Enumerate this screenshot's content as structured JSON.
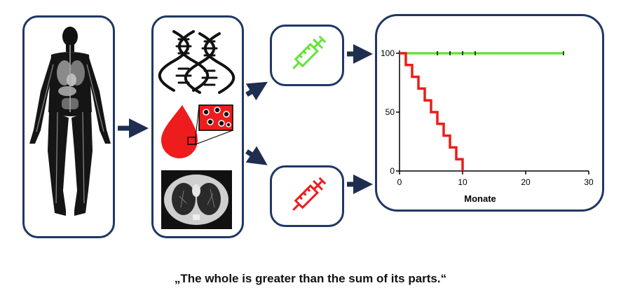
{
  "quote": "„The whole is greater than the sum of its parts.“",
  "icons": {
    "body": "human-body-anatomy-icon",
    "dna": "dna-double-helix-icon",
    "blood": "blood-drop-cells-icon",
    "ct": "lung-ct-scan-icon",
    "syringe_green": "green-syringe-icon",
    "syringe_red": "red-syringe-icon"
  },
  "colors": {
    "frame": "#1f3864",
    "arrow": "#1f2d4f",
    "green": "#66e23a",
    "red": "#ee1c1c"
  },
  "chart_data": {
    "type": "line",
    "xlabel": "Monate",
    "ylabel": "",
    "xlim": [
      0,
      30
    ],
    "ylim": [
      0,
      100
    ],
    "x_ticks": [
      0,
      10,
      20,
      30
    ],
    "y_ticks": [
      0,
      50,
      100
    ],
    "series": [
      {
        "color": "#66e23a",
        "step": true,
        "x": [
          0,
          26
        ],
        "y": [
          100,
          100
        ],
        "censored_x": [
          6,
          8,
          10,
          12,
          26
        ]
      },
      {
        "color": "#ee1c1c",
        "step": true,
        "x": [
          0,
          1,
          2,
          3,
          4,
          5,
          6,
          7,
          8,
          9,
          10
        ],
        "y": [
          100,
          90,
          80,
          70,
          60,
          50,
          40,
          30,
          20,
          10,
          0
        ]
      }
    ]
  }
}
